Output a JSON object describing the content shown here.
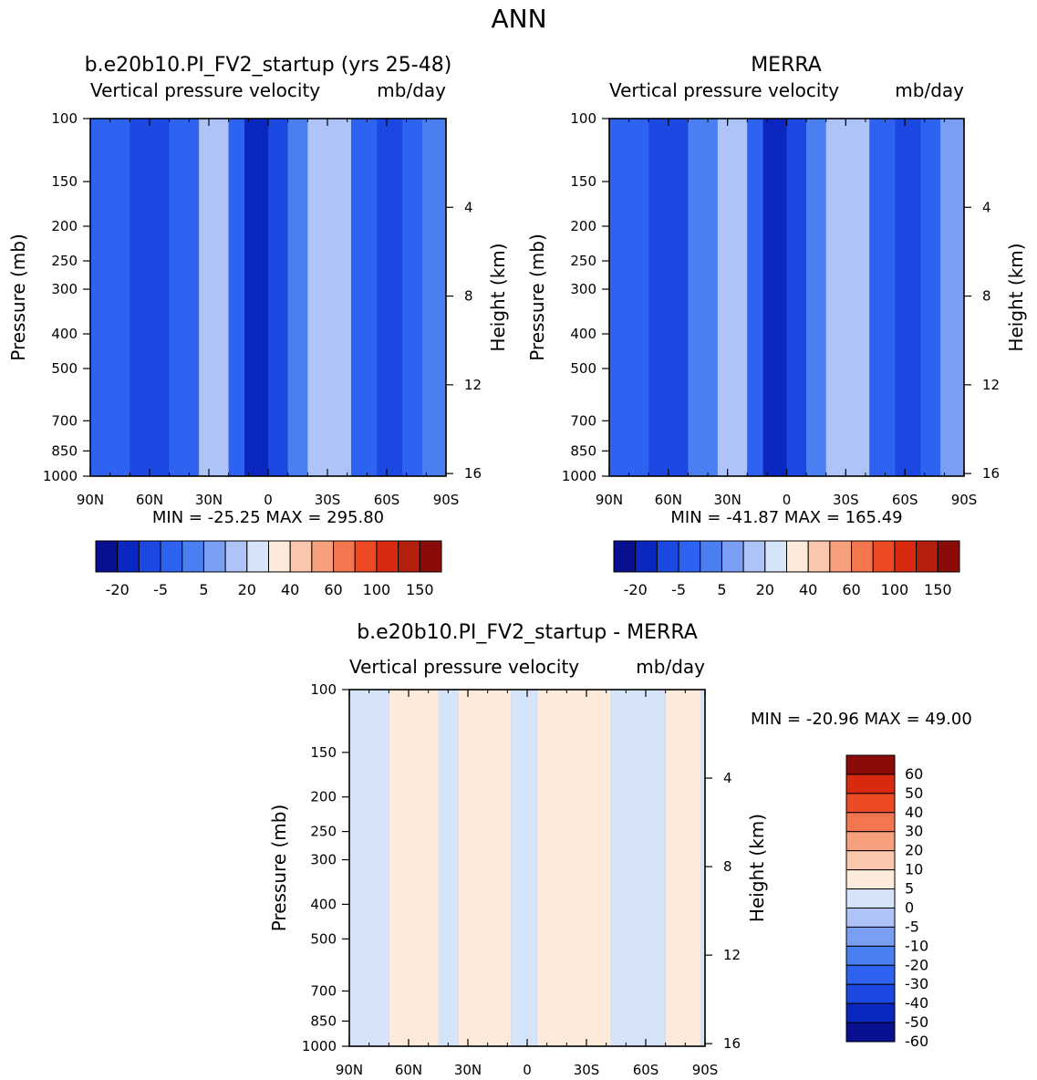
{
  "page_title": "ANN",
  "colors": {
    "panel_scale": [
      "#08108f",
      "#0a28c0",
      "#1a48e0",
      "#2e62f0",
      "#4a7ff2",
      "#7a9ef4",
      "#aec4f8",
      "#d6e4fa",
      "#fdeadb",
      "#fac7ad",
      "#f7a07e",
      "#f4764e",
      "#ee4a26",
      "#d92a10",
      "#b5200c",
      "#8a0b07"
    ],
    "diff_scale": [
      "#08108f",
      "#0a28c0",
      "#1a48e0",
      "#2e62f0",
      "#4a7ff2",
      "#7a9ef4",
      "#aec4f8",
      "#d6e4fa",
      "#fdeadb",
      "#fac7ad",
      "#f7a07e",
      "#f4764e",
      "#ee4a26",
      "#d92a10",
      "#8a0b07"
    ]
  },
  "chart_data": [
    {
      "type": "heatmap",
      "title": "b.e20b10.PI_FV2_startup (yrs 25-48)",
      "subtitle_left": "Vertical pressure velocity",
      "subtitle_right": "mb/day",
      "xlabel": "",
      "ylabel": "Pressure (mb)",
      "ylabel_right": "Height (km)",
      "x_ticks": [
        "90N",
        "60N",
        "30N",
        "0",
        "30S",
        "60S",
        "90S"
      ],
      "y_ticks": [
        "100",
        "150",
        "200",
        "250",
        "300",
        "400",
        "500",
        "700",
        "850",
        "1000"
      ],
      "y_right_ticks": [
        "16",
        "12",
        "8",
        "4"
      ],
      "stats": "MIN = -25.25   MAX = 295.80",
      "colorbar_labels": [
        "-20",
        "-5",
        "5",
        "20",
        "40",
        "60",
        "100",
        "150"
      ],
      "zonal_bands": [
        {
          "lat_from": 90,
          "lat_to": 70,
          "level": 3
        },
        {
          "lat_from": 70,
          "lat_to": 50,
          "level": 2
        },
        {
          "lat_from": 50,
          "lat_to": 35,
          "level": 3
        },
        {
          "lat_from": 35,
          "lat_to": 20,
          "level": 6
        },
        {
          "lat_from": 20,
          "lat_to": 12,
          "level": 3
        },
        {
          "lat_from": 12,
          "lat_to": 0,
          "level": 1
        },
        {
          "lat_from": 0,
          "lat_to": -10,
          "level": 2
        },
        {
          "lat_from": -10,
          "lat_to": -20,
          "level": 4
        },
        {
          "lat_from": -20,
          "lat_to": -42,
          "level": 6
        },
        {
          "lat_from": -42,
          "lat_to": -55,
          "level": 3
        },
        {
          "lat_from": -55,
          "lat_to": -68,
          "level": 2
        },
        {
          "lat_from": -68,
          "lat_to": -78,
          "level": 3
        },
        {
          "lat_from": -78,
          "lat_to": -90,
          "level": 4
        }
      ]
    },
    {
      "type": "heatmap",
      "title": "MERRA",
      "subtitle_left": "Vertical pressure velocity",
      "subtitle_right": "mb/day",
      "xlabel": "",
      "ylabel": "Pressure (mb)",
      "ylabel_right": "Height (km)",
      "x_ticks": [
        "90N",
        "60N",
        "30N",
        "0",
        "30S",
        "60S",
        "90S"
      ],
      "y_ticks": [
        "100",
        "150",
        "200",
        "250",
        "300",
        "400",
        "500",
        "700",
        "850",
        "1000"
      ],
      "y_right_ticks": [
        "16",
        "12",
        "8",
        "4"
      ],
      "stats": "MIN = -41.87   MAX = 165.49",
      "colorbar_labels": [
        "-20",
        "-5",
        "5",
        "20",
        "40",
        "60",
        "100",
        "150"
      ],
      "zonal_bands": [
        {
          "lat_from": 90,
          "lat_to": 70,
          "level": 3
        },
        {
          "lat_from": 70,
          "lat_to": 50,
          "level": 2
        },
        {
          "lat_from": 50,
          "lat_to": 35,
          "level": 4
        },
        {
          "lat_from": 35,
          "lat_to": 20,
          "level": 6
        },
        {
          "lat_from": 20,
          "lat_to": 12,
          "level": 3
        },
        {
          "lat_from": 12,
          "lat_to": 0,
          "level": 1
        },
        {
          "lat_from": 0,
          "lat_to": -10,
          "level": 2
        },
        {
          "lat_from": -10,
          "lat_to": -20,
          "level": 4
        },
        {
          "lat_from": -20,
          "lat_to": -42,
          "level": 6
        },
        {
          "lat_from": -42,
          "lat_to": -55,
          "level": 3
        },
        {
          "lat_from": -55,
          "lat_to": -68,
          "level": 2
        },
        {
          "lat_from": -68,
          "lat_to": -78,
          "level": 3
        },
        {
          "lat_from": -78,
          "lat_to": -90,
          "level": 5
        }
      ]
    },
    {
      "type": "heatmap",
      "title": "b.e20b10.PI_FV2_startup - MERRA",
      "subtitle_left": "Vertical pressure velocity",
      "subtitle_right": "mb/day",
      "xlabel": "",
      "ylabel": "Pressure (mb)",
      "ylabel_right": "Height (km)",
      "x_ticks": [
        "90N",
        "60N",
        "30N",
        "0",
        "30S",
        "60S",
        "90S"
      ],
      "y_ticks": [
        "100",
        "150",
        "200",
        "250",
        "300",
        "400",
        "500",
        "700",
        "850",
        "1000"
      ],
      "y_right_ticks": [
        "16",
        "12",
        "8",
        "4"
      ],
      "stats": "MIN = -20.96   MAX =   49.00",
      "colorbar_labels": [
        "60",
        "50",
        "40",
        "30",
        "20",
        "10",
        "5",
        "0",
        "-5",
        "-10",
        "-20",
        "-30",
        "-40",
        "-50",
        "-60"
      ],
      "zonal_bands": [
        {
          "lat_from": 90,
          "lat_to": 70,
          "level": 7
        },
        {
          "lat_from": 70,
          "lat_to": 45,
          "level": 8
        },
        {
          "lat_from": 45,
          "lat_to": 35,
          "level": 7
        },
        {
          "lat_from": 35,
          "lat_to": 8,
          "level": 8
        },
        {
          "lat_from": 8,
          "lat_to": -5,
          "level": 7
        },
        {
          "lat_from": -5,
          "lat_to": -42,
          "level": 8
        },
        {
          "lat_from": -42,
          "lat_to": -70,
          "level": 7
        },
        {
          "lat_from": -70,
          "lat_to": -88,
          "level": 8
        },
        {
          "lat_from": -88,
          "lat_to": -90,
          "level": 7
        }
      ]
    }
  ]
}
